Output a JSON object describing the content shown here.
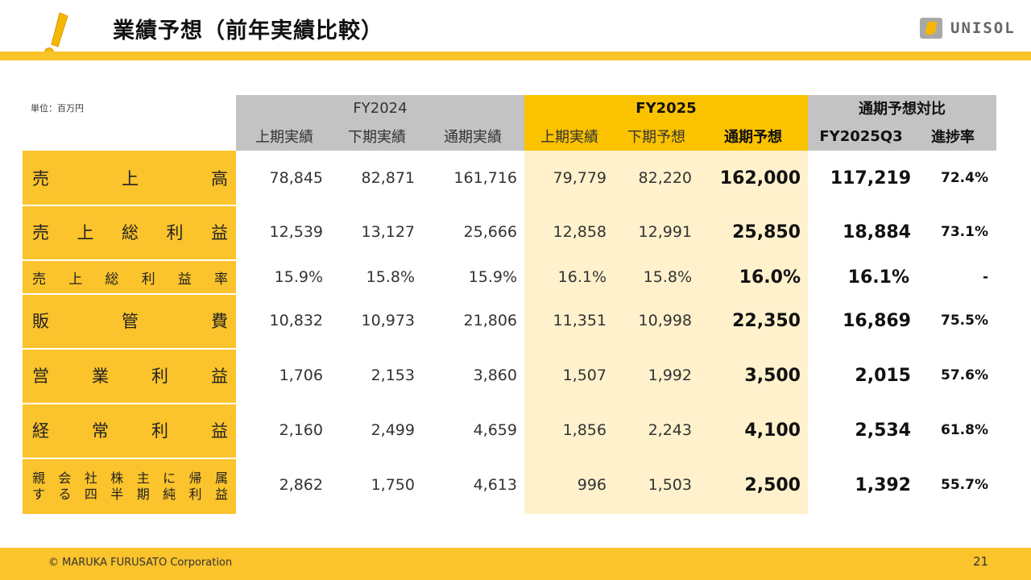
{
  "title": "業績予想（前年実績比較）",
  "brand": "UNISOL",
  "unit": "単位：百万円",
  "header": {
    "fy2024": "FY2024",
    "fy2025": "FY2025",
    "compare": "通期予想対比",
    "cols": [
      "上期実績",
      "下期実績",
      "通期実績",
      "上期実績",
      "下期予想",
      "通期予想",
      "FY2025Q3",
      "進捗率"
    ]
  },
  "rows": [
    {
      "label": [
        "売",
        "上",
        "高"
      ],
      "values": [
        "78,845",
        "82,871",
        "161,716",
        "79,779",
        "82,220",
        "162,000",
        "117,219",
        "72.4%"
      ]
    },
    {
      "label": [
        "売",
        "上",
        "総",
        "利",
        "益"
      ],
      "values": [
        "12,539",
        "13,127",
        "25,666",
        "12,858",
        "12,991",
        "25,850",
        "18,884",
        "73.1%"
      ]
    },
    {
      "label": [
        "売",
        "上",
        "総",
        "利",
        "益",
        "率"
      ],
      "values": [
        "15.9%",
        "15.8%",
        "15.9%",
        "16.1%",
        "15.8%",
        "16.0%",
        "16.1%",
        "-"
      ]
    },
    {
      "label": [
        "販",
        "管",
        "費"
      ],
      "values": [
        "10,832",
        "10,973",
        "21,806",
        "11,351",
        "10,998",
        "22,350",
        "16,869",
        "75.5%"
      ]
    },
    {
      "label": [
        "営",
        "業",
        "利",
        "益"
      ],
      "values": [
        "1,706",
        "2,153",
        "3,860",
        "1,507",
        "1,992",
        "3,500",
        "2,015",
        "57.6%"
      ]
    },
    {
      "label": [
        "経",
        "常",
        "利",
        "益"
      ],
      "values": [
        "2,160",
        "2,499",
        "4,659",
        "1,856",
        "2,243",
        "4,100",
        "2,534",
        "61.8%"
      ]
    },
    {
      "label_line1": [
        "親",
        "会",
        "社",
        "株",
        "主",
        "に",
        "帰",
        "属"
      ],
      "label_line2": [
        "す",
        "る",
        "四",
        "半",
        "期",
        "純",
        "利",
        "益"
      ],
      "values": [
        "2,862",
        "1,750",
        "4,613",
        "996",
        "1,503",
        "2,500",
        "1,392",
        "55.7%"
      ]
    }
  ],
  "footer": {
    "copyright": "© MARUKA FURUSATO Corporation",
    "page": "21"
  },
  "colors": {
    "accent": "#fbc32c",
    "header_gray": "#c3c3c3",
    "fy2025_header": "#fbc200",
    "fy2025_body": "#fff1cc"
  }
}
